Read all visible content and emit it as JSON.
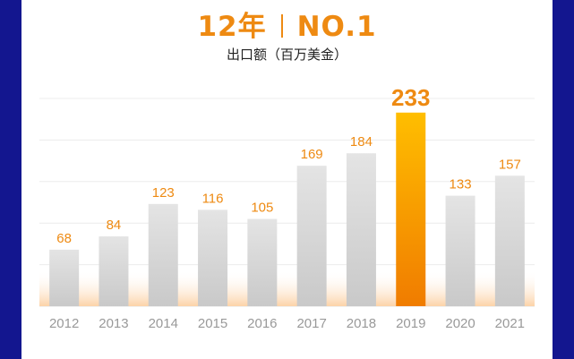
{
  "header": {
    "title_left": "12年",
    "title_right": "NO.1",
    "subtitle": "出口额（百万美金）"
  },
  "colors": {
    "accent": "#ee8a12",
    "highlight_top": "#ffbe00",
    "highlight_bottom": "#f08000",
    "bar": "#d3d3d3",
    "border": "#13168f"
  },
  "chart_data": {
    "type": "bar",
    "title": "12年 | NO.1",
    "ylabel": "出口额（百万美金）",
    "categories": [
      "2012",
      "2013",
      "2014",
      "2015",
      "2016",
      "2017",
      "2018",
      "2019",
      "2020",
      "2021"
    ],
    "values": [
      68,
      84,
      123,
      116,
      105,
      169,
      184,
      233,
      133,
      157
    ],
    "highlight": "2019",
    "ylim": [
      0,
      250
    ],
    "grid": true
  }
}
